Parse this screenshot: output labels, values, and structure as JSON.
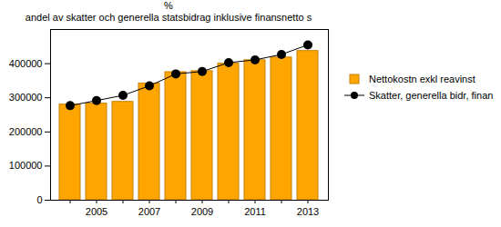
{
  "chart_data": {
    "type": "bar",
    "title": "%",
    "subtitle": "andel av skatter och generella statsbidrag inklusive finansnetto s",
    "categories": [
      null,
      "2005",
      null,
      "2007",
      null,
      "2009",
      null,
      "2011",
      null,
      "2013"
    ],
    "series": [
      {
        "name": "Nettokostn exkl reavinst",
        "type": "bar",
        "color": "#ffa500",
        "values": [
          280000,
          283000,
          288000,
          342000,
          375000,
          378000,
          400000,
          410000,
          418000,
          437000
        ]
      },
      {
        "name": "Skatter, generella bidr, finan",
        "type": "line",
        "color": "#000000",
        "marker": "circle",
        "values": [
          277000,
          292000,
          307000,
          335000,
          370000,
          377000,
          403000,
          411000,
          427000,
          455000
        ]
      }
    ],
    "ylim": [
      0,
      500000
    ],
    "yticks": [
      0,
      100000,
      200000,
      300000,
      400000
    ],
    "legend": "right"
  }
}
